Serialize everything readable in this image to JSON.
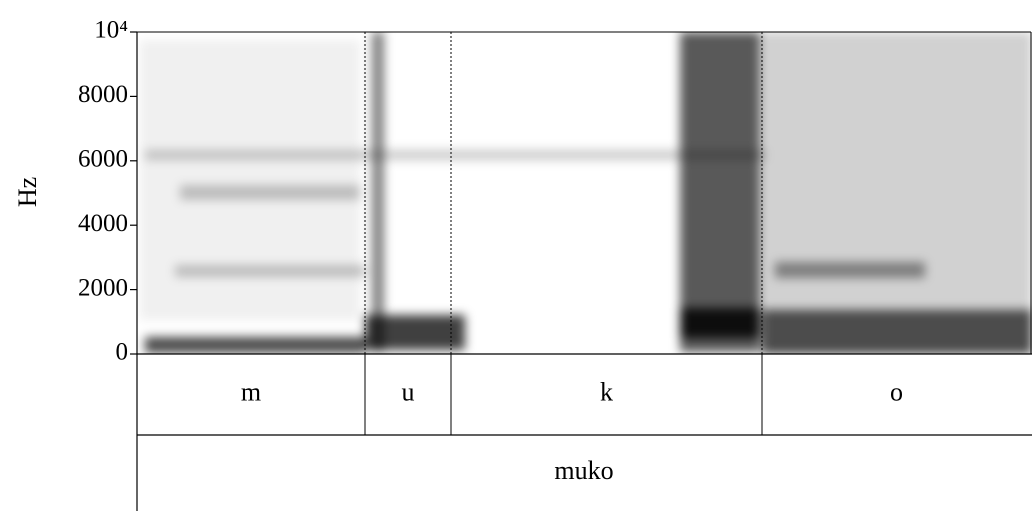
{
  "chart_data": {
    "type": "spectrogram",
    "y_label": "Hz",
    "ylim": [
      0,
      10000
    ],
    "yticks": [
      0,
      2000,
      4000,
      6000,
      8000,
      {
        "value": 10000,
        "label": "10⁴"
      }
    ],
    "tiers": [
      {
        "intervals": [
          "m",
          "u",
          "k",
          "o"
        ]
      },
      {
        "intervals": [
          "muko"
        ]
      }
    ]
  }
}
